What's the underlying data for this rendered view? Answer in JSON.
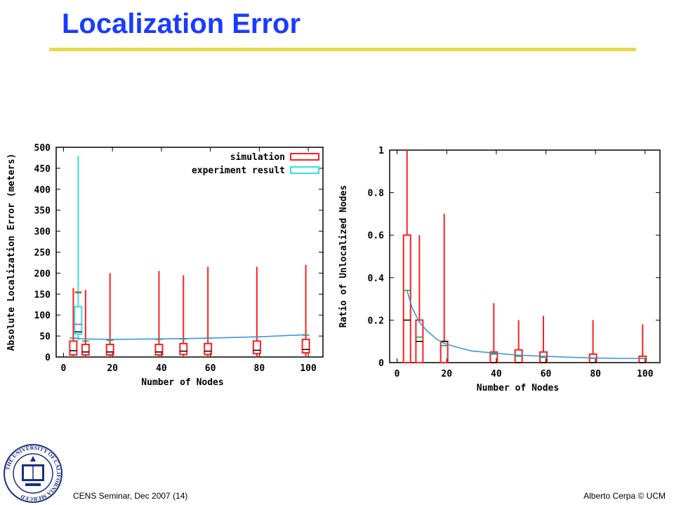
{
  "slide": {
    "title": "Localization Error",
    "footer_left": "CENS Seminar, Dec 2007 (14)",
    "footer_right": "Alberto Cerpa © UCM",
    "logo_text": "THE UNIVERSITY OF CALIFORNIA MERCED"
  },
  "colors": {
    "title": "#1a3cff",
    "rule": "#e8d84a",
    "simulation": "#ff2020",
    "experiment": "#30e0e8",
    "mean_line": "#3090e0",
    "median": "#000000",
    "green_mark": "#20a020",
    "magenta_mark": "#e020e0"
  },
  "chart_data": [
    {
      "type": "box",
      "xlabel": "Number of Nodes",
      "ylabel": "Absolute Localization Error (meters)",
      "xlim": [
        -3,
        106
      ],
      "ylim": [
        0,
        500
      ],
      "xticks": [
        0,
        20,
        40,
        60,
        80,
        100
      ],
      "yticks": [
        0,
        50,
        100,
        150,
        200,
        250,
        300,
        350,
        400,
        450,
        500
      ],
      "legend_placement": "top-right",
      "legend": [
        "simulation",
        "experiment result"
      ],
      "series": [
        {
          "name": "simulation",
          "boxes": [
            {
              "x": 4,
              "min": 0,
              "q1": 5,
              "median": 15,
              "q3": 38,
              "max": 165,
              "mark": 45
            },
            {
              "x": 9,
              "min": 0,
              "q1": 5,
              "median": 12,
              "q3": 30,
              "max": 160,
              "mark": 38
            },
            {
              "x": 19,
              "min": 0,
              "q1": 5,
              "median": 12,
              "q3": 30,
              "max": 200,
              "mark": 40
            },
            {
              "x": 39,
              "min": 0,
              "q1": 5,
              "median": 12,
              "q3": 30,
              "max": 205,
              "mark": 42
            },
            {
              "x": 49,
              "min": 0,
              "q1": 6,
              "median": 14,
              "q3": 32,
              "max": 195,
              "mark": 43
            },
            {
              "x": 59,
              "min": 0,
              "q1": 6,
              "median": 14,
              "q3": 32,
              "max": 215,
              "mark": 45
            },
            {
              "x": 79,
              "min": 0,
              "q1": 8,
              "median": 16,
              "q3": 38,
              "max": 215,
              "mark": 48
            },
            {
              "x": 99,
              "min": 0,
              "q1": 10,
              "median": 18,
              "q3": 42,
              "max": 220,
              "mark": 52
            }
          ]
        },
        {
          "name": "experiment result",
          "boxes": [
            {
              "x": 6,
              "min": 40,
              "q1": 55,
              "median": 60,
              "q3": 120,
              "max": 480,
              "mark": 78,
              "cap": 155
            }
          ]
        }
      ],
      "mean_line": {
        "x": [
          4,
          6,
          9,
          19,
          39,
          49,
          59,
          79,
          99
        ],
        "y": [
          45,
          44,
          43,
          42,
          43,
          44,
          45,
          48,
          53
        ]
      }
    },
    {
      "type": "box",
      "xlabel": "Number of Nodes",
      "ylabel": "Ratio of Unlocalized Nodes",
      "xlim": [
        -3,
        106
      ],
      "ylim": [
        0,
        1
      ],
      "xticks": [
        0,
        20,
        40,
        60,
        80,
        100
      ],
      "yticks": [
        0,
        0.2,
        0.4,
        0.6,
        0.8,
        1
      ],
      "ytick_labels": [
        "0",
        "0.2",
        "0.4",
        "0.6",
        "0.8",
        "1"
      ],
      "series": [
        {
          "name": "simulation",
          "boxes": [
            {
              "x": 4,
              "min": 0,
              "q1": 0,
              "median": 0.2,
              "q3": 0.6,
              "max": 1.0,
              "mark": 0.34
            },
            {
              "x": 9,
              "min": 0,
              "q1": 0,
              "median": 0.1,
              "q3": 0.2,
              "max": 0.6,
              "mark": 0.12
            },
            {
              "x": 19,
              "min": 0,
              "q1": 0,
              "median": 0.1,
              "q3": 0.1,
              "max": 0.7,
              "mark": 0.08
            },
            {
              "x": 39,
              "min": 0,
              "q1": 0,
              "median": 0,
              "q3": 0.05,
              "max": 0.28,
              "mark": 0.04
            },
            {
              "x": 49,
              "min": 0,
              "q1": 0,
              "median": 0,
              "q3": 0.06,
              "max": 0.2,
              "mark": 0.03
            },
            {
              "x": 59,
              "min": 0,
              "q1": 0,
              "median": 0,
              "q3": 0.05,
              "max": 0.22,
              "mark": 0.025
            },
            {
              "x": 79,
              "min": 0,
              "q1": 0,
              "median": 0,
              "q3": 0.04,
              "max": 0.2,
              "mark": 0.02
            },
            {
              "x": 99,
              "min": 0,
              "q1": 0,
              "median": 0,
              "q3": 0.03,
              "max": 0.18,
              "mark": 0.02
            }
          ]
        }
      ],
      "mean_line": {
        "x": [
          4,
          6,
          9,
          12,
          16,
          19,
          25,
          30,
          39,
          49,
          59,
          70,
          79,
          90,
          99
        ],
        "y": [
          0.34,
          0.26,
          0.19,
          0.15,
          0.11,
          0.09,
          0.07,
          0.055,
          0.045,
          0.035,
          0.03,
          0.025,
          0.022,
          0.02,
          0.02
        ]
      }
    }
  ]
}
